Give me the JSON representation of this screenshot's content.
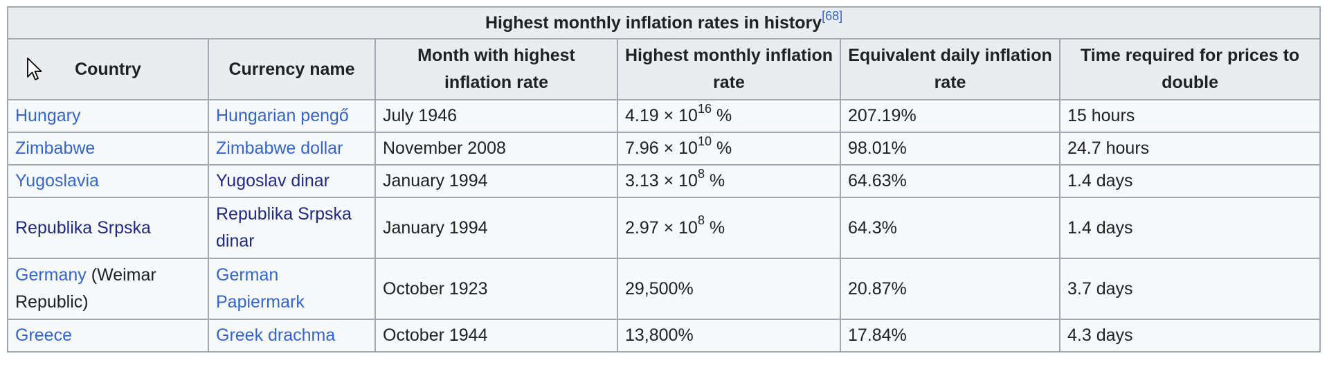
{
  "table": {
    "caption": "Highest monthly inflation rates in history",
    "caption_ref": "[68]",
    "headers": [
      "Country",
      "Currency name",
      "Month with highest inflation rate",
      "Highest monthly inflation rate",
      "Equivalent daily inflation rate",
      "Time required for prices to double"
    ],
    "rows": [
      {
        "country": "Hungary",
        "country_suffix": "",
        "currency": "Hungarian pengő",
        "month": "July 1946",
        "rate_base": "4.19 × 10",
        "rate_exp": "16",
        "rate_suffix": " %",
        "daily": "207.19%",
        "double_time": "15 hours"
      },
      {
        "country": "Zimbabwe",
        "country_suffix": "",
        "currency": "Zimbabwe dollar",
        "month": "November 2008",
        "rate_base": "7.96 × 10",
        "rate_exp": "10",
        "rate_suffix": " %",
        "daily": "98.01%",
        "double_time": "24.7 hours"
      },
      {
        "country": "Yugoslavia",
        "country_suffix": "",
        "currency": "Yugoslav dinar",
        "month": "January 1994",
        "rate_base": "3.13 × 10",
        "rate_exp": "8",
        "rate_suffix": " %",
        "daily": "64.63%",
        "double_time": "1.4 days"
      },
      {
        "country": "Republika Srpska",
        "country_suffix": "",
        "currency": "Republika Srpska dinar",
        "month": "January 1994",
        "rate_base": "2.97 × 10",
        "rate_exp": "8",
        "rate_suffix": " %",
        "daily": "64.3%",
        "double_time": "1.4 days"
      },
      {
        "country": "Germany",
        "country_suffix": " (Weimar Republic)",
        "currency": "German Papiermark",
        "month": "October 1923",
        "rate_plain": "29,500%",
        "daily": "20.87%",
        "double_time": "3.7 days"
      },
      {
        "country": "Greece",
        "country_suffix": "",
        "currency": "Greek drachma",
        "month": "October 1944",
        "rate_plain": "13,800%",
        "daily": "17.84%",
        "double_time": "4.3 days"
      }
    ]
  },
  "colors": {
    "link": "#3366cc",
    "visited_link": "#202a84",
    "border": "#a2a9b1",
    "header_bg": "#eaecf0",
    "cell_bg": "#f8f9fa"
  },
  "cursor_icon": "mouse-pointer-icon"
}
